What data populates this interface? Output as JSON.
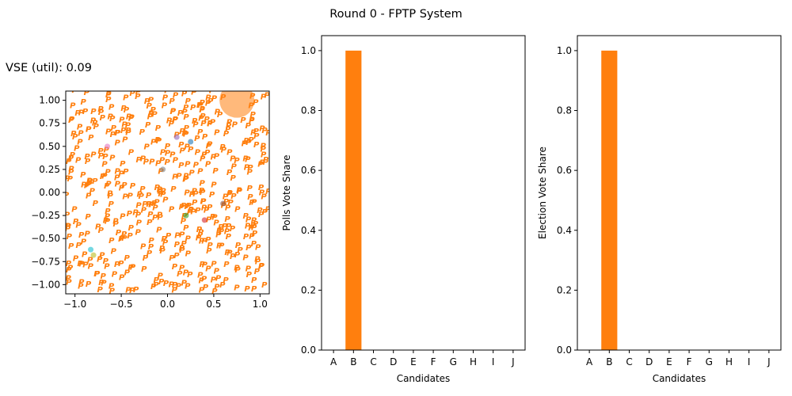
{
  "suptitle": "Round 0 - FPTP System",
  "vse_text": "VSE (util): 0.09",
  "colors": {
    "voter_marker": "#ff7f0e",
    "winner": "#ff7f0e",
    "bar": "#ff7f0e",
    "candidate_colors": [
      "#1f77b4",
      "#ff7f0e",
      "#2ca02c",
      "#d62728",
      "#9467bd",
      "#8c564b",
      "#e377c2",
      "#7f7f7f",
      "#bcbd22",
      "#17becf"
    ]
  },
  "chart_data": [
    {
      "type": "scatter",
      "xlim": [
        -1.1,
        1.1
      ],
      "ylim": [
        -1.1,
        1.1
      ],
      "xticks": [
        "−1.0",
        "−0.5",
        "0.0",
        "0.5",
        "1.0"
      ],
      "yticks": [
        "1.00",
        "0.75",
        "0.50",
        "0.25",
        "0.00",
        "−0.25",
        "−0.50",
        "−0.75",
        "−1.00"
      ],
      "voter_marker": "P",
      "candidates": [
        {
          "x": 0.75,
          "y": 1.0,
          "color": "#ff7f0e",
          "winner": true
        },
        {
          "x": -0.65,
          "y": 0.5,
          "color": "#e377c2"
        },
        {
          "x": 0.1,
          "y": 0.6,
          "color": "#9467bd"
        },
        {
          "x": -0.05,
          "y": 0.25,
          "color": "#7f7f7f"
        },
        {
          "x": 0.2,
          "y": -0.25,
          "color": "#2ca02c"
        },
        {
          "x": 0.6,
          "y": -0.12,
          "color": "#8c564b"
        },
        {
          "x": -0.83,
          "y": -0.62,
          "color": "#17becf"
        },
        {
          "x": -0.8,
          "y": -0.68,
          "color": "#bcbd22"
        },
        {
          "x": 0.25,
          "y": 0.55,
          "color": "#1f77b4"
        },
        {
          "x": 0.4,
          "y": -0.3,
          "color": "#d62728"
        }
      ]
    },
    {
      "type": "bar",
      "ylabel": "Polls Vote Share",
      "xlabel": "Candidates",
      "categories": [
        "A",
        "B",
        "C",
        "D",
        "E",
        "F",
        "G",
        "H",
        "I",
        "J"
      ],
      "values": [
        0,
        1,
        0,
        0,
        0,
        0,
        0,
        0,
        0,
        0
      ],
      "ylim": [
        0,
        1.05
      ],
      "yticks": [
        "0.0",
        "0.2",
        "0.4",
        "0.6",
        "0.8",
        "1.0"
      ]
    },
    {
      "type": "bar",
      "ylabel": "Election Vote Share",
      "xlabel": "Candidates",
      "categories": [
        "A",
        "B",
        "C",
        "D",
        "E",
        "F",
        "G",
        "H",
        "I",
        "J"
      ],
      "values": [
        0,
        1,
        0,
        0,
        0,
        0,
        0,
        0,
        0,
        0
      ],
      "ylim": [
        0,
        1.05
      ],
      "yticks": [
        "0.0",
        "0.2",
        "0.4",
        "0.6",
        "0.8",
        "1.0"
      ]
    }
  ]
}
